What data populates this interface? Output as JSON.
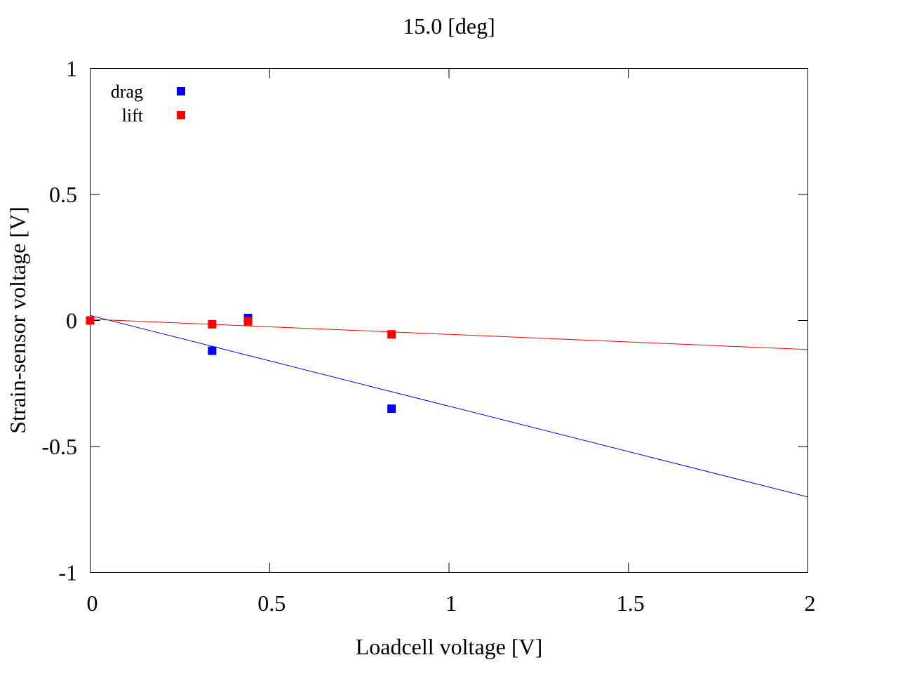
{
  "chart_data": {
    "type": "scatter",
    "title": "15.0 [deg]",
    "xlabel": "Loadcell voltage [V]",
    "ylabel": "Strain-sensor voltage [V]",
    "xlim": [
      0,
      2
    ],
    "ylim": [
      -1,
      1
    ],
    "x_ticks": [
      "0",
      "0.5",
      "1",
      "1.5",
      "2"
    ],
    "y_ticks": [
      "1",
      "0.5",
      "0",
      "-0.5",
      "-1"
    ],
    "legend_position": "top-left",
    "grid": false,
    "series": [
      {
        "name": "drag",
        "color": "#0000ff",
        "points": [
          {
            "x": 0.0,
            "y": 0.0
          },
          {
            "x": 0.34,
            "y": -0.12
          },
          {
            "x": 0.44,
            "y": 0.01
          },
          {
            "x": 0.84,
            "y": -0.35
          }
        ],
        "fit": {
          "x0": 0.0,
          "y0": 0.02,
          "x1": 2.0,
          "y1": -0.7
        }
      },
      {
        "name": "lift",
        "color": "#ff0000",
        "points": [
          {
            "x": 0.0,
            "y": 0.0
          },
          {
            "x": 0.34,
            "y": -0.015
          },
          {
            "x": 0.44,
            "y": -0.003
          },
          {
            "x": 0.84,
            "y": -0.055
          }
        ],
        "fit": {
          "x0": 0.0,
          "y0": 0.005,
          "x1": 2.0,
          "y1": -0.115
        }
      }
    ]
  }
}
